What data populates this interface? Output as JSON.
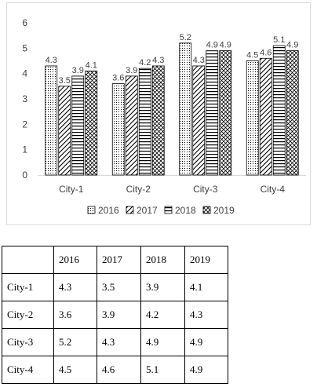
{
  "chart_data": {
    "type": "bar",
    "categories": [
      "City-1",
      "City-2",
      "City-3",
      "City-4"
    ],
    "series": [
      {
        "name": "2016",
        "values": [
          4.3,
          3.6,
          5.2,
          4.5
        ],
        "pattern": "dots"
      },
      {
        "name": "2017",
        "values": [
          3.5,
          3.9,
          4.3,
          4.6
        ],
        "pattern": "diagonal"
      },
      {
        "name": "2018",
        "values": [
          3.9,
          4.2,
          4.9,
          5.1
        ],
        "pattern": "horizontal"
      },
      {
        "name": "2019",
        "values": [
          4.1,
          4.3,
          4.9,
          4.9
        ],
        "pattern": "crosshatch"
      }
    ],
    "yticks": [
      "0",
      "1",
      "2",
      "3",
      "4",
      "5",
      "6"
    ],
    "ylim": [
      0,
      6
    ],
    "grid": false,
    "legend_position": "bottom",
    "title": "",
    "xlabel": "",
    "ylabel": ""
  },
  "table": {
    "headers": [
      "",
      "2016",
      "2017",
      "2018",
      "2019"
    ],
    "rows": [
      [
        "City-1",
        "4.3",
        "3.5",
        "3.9",
        "4.1"
      ],
      [
        "City-2",
        "3.6",
        "3.9",
        "4.2",
        "4.3"
      ],
      [
        "City-3",
        "5.2",
        "4.3",
        "4.9",
        "4.9"
      ],
      [
        "City-4",
        "4.5",
        "4.6",
        "5.1",
        "4.9"
      ]
    ]
  }
}
